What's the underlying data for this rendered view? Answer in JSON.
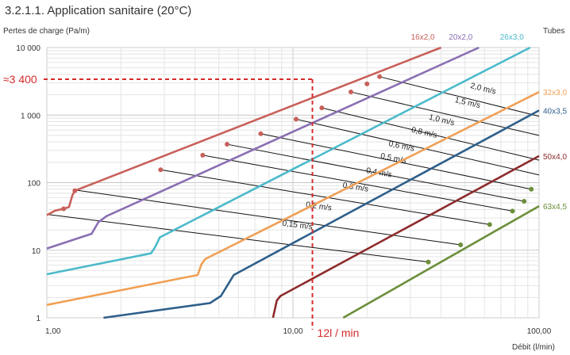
{
  "chart_data": {
    "type": "line",
    "title": "3.2.1.1. Application sanitaire (20°C)",
    "ylabel": "Pertes de charge (Pa/m)",
    "xlabel": "Débit (l/min)",
    "legend_title": "Tubes",
    "x_scale": "log",
    "y_scale": "log",
    "xlim": [
      1,
      100
    ],
    "ylim": [
      1,
      10000
    ],
    "x_ticks": [
      {
        "value": 1,
        "label": "1,00"
      },
      {
        "value": 10,
        "label": "10,00"
      },
      {
        "value": 100,
        "label": "100,00"
      }
    ],
    "y_ticks": [
      {
        "value": 10000,
        "label": "10 000"
      },
      {
        "value": 1000,
        "label": "1 000"
      },
      {
        "value": 100,
        "label": "100"
      },
      {
        "value": 10,
        "label": "10"
      },
      {
        "value": 1,
        "label": "1"
      }
    ],
    "grid": true,
    "series": [
      {
        "name": "16x2,0",
        "color": "#c8605a",
        "label_pos": "top",
        "points": [
          [
            1,
            33
          ],
          [
            1.08,
            38.5
          ],
          [
            1.17,
            41
          ],
          [
            1.23,
            43.5
          ],
          [
            1.27,
            65
          ],
          [
            1.3,
            76
          ],
          [
            40,
            10000
          ]
        ],
        "markers": [
          [
            1.17,
            41
          ],
          [
            1.3,
            76
          ],
          [
            2.9,
            155
          ],
          [
            4.3,
            255
          ],
          [
            5.4,
            370
          ],
          [
            7.4,
            530
          ],
          [
            10.3,
            870
          ],
          [
            13.1,
            1280
          ],
          [
            17.2,
            2200
          ],
          [
            20,
            2900
          ],
          [
            22.5,
            3700
          ]
        ]
      },
      {
        "name": "20x2,0",
        "color": "#8a6fb3",
        "label_pos": "top",
        "points": [
          [
            1,
            10.6
          ],
          [
            1.52,
            17.5
          ],
          [
            1.62,
            26
          ],
          [
            1.75,
            32
          ],
          [
            57,
            10000
          ]
        ]
      },
      {
        "name": "26x3,0",
        "color": "#4bbacb",
        "label_pos": "top",
        "points": [
          [
            1,
            4.4
          ],
          [
            2.65,
            9
          ],
          [
            2.75,
            11
          ],
          [
            2.88,
            15.5
          ],
          [
            92,
            10000
          ]
        ]
      },
      {
        "name": "32x3,0",
        "color": "#f0a054",
        "label_pos": "right",
        "points": [
          [
            1,
            1.55
          ],
          [
            4.1,
            4.3
          ],
          [
            4.25,
            6.2
          ],
          [
            4.4,
            7.4
          ],
          [
            100,
            2200
          ]
        ]
      },
      {
        "name": "40x3,5",
        "color": "#2e5f8a",
        "label_pos": "right",
        "points": [
          [
            1.7,
            1
          ],
          [
            4.6,
            1.65
          ],
          [
            5.1,
            2.1
          ],
          [
            5.5,
            3.3
          ],
          [
            5.75,
            4.3
          ],
          [
            100,
            1170
          ]
        ]
      },
      {
        "name": "50x4,0",
        "color": "#8d2b2b",
        "label_pos": "right",
        "points": [
          [
            8.3,
            1
          ],
          [
            8.6,
            1.8
          ],
          [
            8.9,
            2.1
          ],
          [
            100,
            248
          ]
        ]
      },
      {
        "name": "63x4,5",
        "color": "#6b8e3a",
        "label_pos": "right",
        "points": [
          [
            16,
            1
          ],
          [
            100,
            45
          ]
        ],
        "markers": [
          [
            35.5,
            6.7
          ],
          [
            48,
            12
          ],
          [
            63,
            24
          ],
          [
            78,
            38
          ],
          [
            87,
            53
          ],
          [
            93,
            80
          ]
        ]
      }
    ],
    "velocity_lines": [
      {
        "label": "0,15 m/s",
        "from": [
          1,
          34
        ],
        "to": [
          35.5,
          6.7
        ],
        "label_at": [
          10.4,
          20
        ]
      },
      {
        "label": "0,2 m/s",
        "from": [
          1.3,
          78
        ],
        "to": [
          48,
          12
        ],
        "label_at": [
          12.7,
          38
        ]
      },
      {
        "label": "0,3 m/s",
        "from": [
          2.9,
          155
        ],
        "to": [
          63,
          24
        ],
        "label_at": [
          17.9,
          73
        ]
      },
      {
        "label": "0,4 m/s",
        "from": [
          4.3,
          255
        ],
        "to": [
          78,
          38
        ],
        "label_at": [
          22.3,
          120
        ]
      },
      {
        "label": "0,5 m/s",
        "from": [
          5.4,
          370
        ],
        "to": [
          87,
          53
        ],
        "label_at": [
          25.5,
          195
        ]
      },
      {
        "label": "0,6 m/s",
        "from": [
          7.4,
          530
        ],
        "to": [
          93,
          80
        ],
        "label_at": [
          27.5,
          295
        ]
      },
      {
        "label": "0,8 m/s",
        "from": [
          10.3,
          870
        ],
        "to": [
          100,
          130
        ],
        "label_at": [
          34,
          470
        ]
      },
      {
        "label": "1,0 m/s",
        "from": [
          13.1,
          1280
        ],
        "to": [
          100,
          215
        ],
        "label_at": [
          40,
          720
        ]
      },
      {
        "label": "1,5 m/s",
        "from": [
          17.2,
          2200
        ],
        "to": [
          100,
          500
        ],
        "label_at": [
          51,
          1300
        ]
      },
      {
        "label": "2,0 m/s",
        "from": [
          22.5,
          3700
        ],
        "to": [
          100,
          960
        ],
        "label_at": [
          59,
          2100
        ]
      }
    ],
    "annotations": [
      {
        "text": "≈3 400",
        "x": 12,
        "y": 3400
      },
      {
        "text": "12l / min",
        "x": 12,
        "y": 1
      }
    ]
  }
}
